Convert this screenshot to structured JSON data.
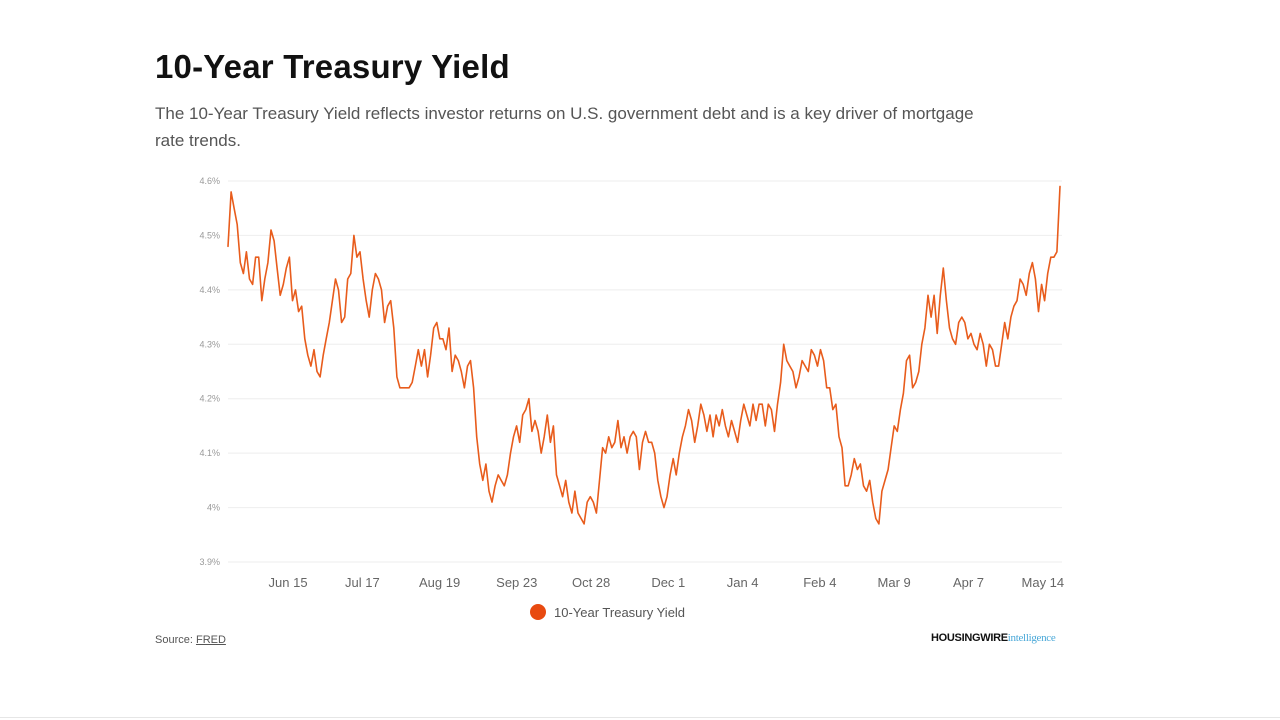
{
  "header": {
    "title": "10-Year Treasury Yield",
    "subtitle": "The 10-Year Treasury Yield reflects investor returns on U.S. government debt and is a key driver of mortgage rate trends."
  },
  "footer": {
    "source_label": "Source: ",
    "source_link": "FRED",
    "logo_part1": "HOUSINGWIRE",
    "logo_part2": "intelligence"
  },
  "colors": {
    "series": "#e85c1c",
    "legend_dot": "#e84a10",
    "grid": "#eeeeee",
    "tick_text": "#999999",
    "x_tick_text": "#666666"
  },
  "chart_data": {
    "type": "line",
    "title": "10-Year Treasury Yield",
    "xlabel": "",
    "ylabel": "",
    "ylim": [
      3.9,
      4.6
    ],
    "xlim": [
      0,
      291
    ],
    "grid": "horizontal",
    "legend_position": "bottom-center",
    "y_ticks": [
      {
        "value": 3.9,
        "label": "3.9%"
      },
      {
        "value": 4.0,
        "label": "4%"
      },
      {
        "value": 4.1,
        "label": "4.1%"
      },
      {
        "value": 4.2,
        "label": "4.2%"
      },
      {
        "value": 4.3,
        "label": "4.3%"
      },
      {
        "value": 4.4,
        "label": "4.4%"
      },
      {
        "value": 4.5,
        "label": "4.5%"
      },
      {
        "value": 4.6,
        "label": "4.6%"
      }
    ],
    "x_ticks": [
      {
        "x": 21,
        "label": "Jun 15"
      },
      {
        "x": 47,
        "label": "Jul 17"
      },
      {
        "x": 74,
        "label": "Aug 19"
      },
      {
        "x": 101,
        "label": "Sep 23"
      },
      {
        "x": 127,
        "label": "Oct 28"
      },
      {
        "x": 154,
        "label": "Dec 1"
      },
      {
        "x": 180,
        "label": "Jan 4"
      },
      {
        "x": 207,
        "label": "Feb 4"
      },
      {
        "x": 233,
        "label": "Mar 9"
      },
      {
        "x": 259,
        "label": "Apr 7"
      },
      {
        "x": 285,
        "label": "May 14"
      }
    ],
    "series": [
      {
        "name": "10-Year Treasury Yield",
        "points": [
          [
            0,
            4.48
          ],
          [
            1,
            4.58
          ],
          [
            2,
            4.55
          ],
          [
            3,
            4.52
          ],
          [
            4,
            4.45
          ],
          [
            5,
            4.43
          ],
          [
            6,
            4.47
          ],
          [
            7,
            4.42
          ],
          [
            8,
            4.41
          ],
          [
            9,
            4.46
          ],
          [
            10,
            4.46
          ],
          [
            11,
            4.38
          ],
          [
            12,
            4.42
          ],
          [
            13,
            4.45
          ],
          [
            14,
            4.51
          ],
          [
            15,
            4.49
          ],
          [
            16,
            4.44
          ],
          [
            17,
            4.39
          ],
          [
            18,
            4.41
          ],
          [
            19,
            4.44
          ],
          [
            20,
            4.46
          ],
          [
            21,
            4.38
          ],
          [
            22,
            4.4
          ],
          [
            23,
            4.36
          ],
          [
            24,
            4.37
          ],
          [
            25,
            4.31
          ],
          [
            26,
            4.28
          ],
          [
            27,
            4.26
          ],
          [
            28,
            4.29
          ],
          [
            29,
            4.25
          ],
          [
            30,
            4.24
          ],
          [
            31,
            4.28
          ],
          [
            32,
            4.31
          ],
          [
            33,
            4.34
          ],
          [
            34,
            4.38
          ],
          [
            35,
            4.42
          ],
          [
            36,
            4.4
          ],
          [
            37,
            4.34
          ],
          [
            38,
            4.35
          ],
          [
            39,
            4.42
          ],
          [
            40,
            4.43
          ],
          [
            41,
            4.5
          ],
          [
            42,
            4.46
          ],
          [
            43,
            4.47
          ],
          [
            44,
            4.42
          ],
          [
            45,
            4.38
          ],
          [
            46,
            4.35
          ],
          [
            47,
            4.4
          ],
          [
            48,
            4.43
          ],
          [
            49,
            4.42
          ],
          [
            50,
            4.4
          ],
          [
            51,
            4.34
          ],
          [
            52,
            4.37
          ],
          [
            53,
            4.38
          ],
          [
            54,
            4.33
          ],
          [
            55,
            4.24
          ],
          [
            56,
            4.22
          ],
          [
            57,
            4.22
          ],
          [
            58,
            4.22
          ],
          [
            59,
            4.22
          ],
          [
            60,
            4.23
          ],
          [
            61,
            4.26
          ],
          [
            62,
            4.29
          ],
          [
            63,
            4.26
          ],
          [
            64,
            4.29
          ],
          [
            65,
            4.24
          ],
          [
            66,
            4.28
          ],
          [
            67,
            4.33
          ],
          [
            68,
            4.34
          ],
          [
            69,
            4.31
          ],
          [
            70,
            4.31
          ],
          [
            71,
            4.29
          ],
          [
            72,
            4.33
          ],
          [
            73,
            4.25
          ],
          [
            74,
            4.28
          ],
          [
            75,
            4.27
          ],
          [
            76,
            4.25
          ],
          [
            77,
            4.22
          ],
          [
            78,
            4.26
          ],
          [
            79,
            4.27
          ],
          [
            80,
            4.22
          ],
          [
            81,
            4.13
          ],
          [
            82,
            4.08
          ],
          [
            83,
            4.05
          ],
          [
            84,
            4.08
          ],
          [
            85,
            4.03
          ],
          [
            86,
            4.01
          ],
          [
            87,
            4.04
          ],
          [
            88,
            4.06
          ],
          [
            89,
            4.05
          ],
          [
            90,
            4.04
          ],
          [
            91,
            4.06
          ],
          [
            92,
            4.1
          ],
          [
            93,
            4.13
          ],
          [
            94,
            4.15
          ],
          [
            95,
            4.12
          ],
          [
            96,
            4.17
          ],
          [
            97,
            4.18
          ],
          [
            98,
            4.2
          ],
          [
            99,
            4.14
          ],
          [
            100,
            4.16
          ],
          [
            101,
            4.14
          ],
          [
            102,
            4.1
          ],
          [
            103,
            4.13
          ],
          [
            104,
            4.17
          ],
          [
            105,
            4.12
          ],
          [
            106,
            4.15
          ],
          [
            107,
            4.06
          ],
          [
            108,
            4.04
          ],
          [
            109,
            4.02
          ],
          [
            110,
            4.05
          ],
          [
            111,
            4.01
          ],
          [
            112,
            3.99
          ],
          [
            113,
            4.03
          ],
          [
            114,
            3.99
          ],
          [
            115,
            3.98
          ],
          [
            116,
            3.97
          ],
          [
            117,
            4.01
          ],
          [
            118,
            4.02
          ],
          [
            119,
            4.01
          ],
          [
            120,
            3.99
          ],
          [
            121,
            4.05
          ],
          [
            122,
            4.11
          ],
          [
            123,
            4.1
          ],
          [
            124,
            4.13
          ],
          [
            125,
            4.11
          ],
          [
            126,
            4.12
          ],
          [
            127,
            4.16
          ],
          [
            128,
            4.11
          ],
          [
            129,
            4.13
          ],
          [
            130,
            4.1
          ],
          [
            131,
            4.13
          ],
          [
            132,
            4.14
          ],
          [
            133,
            4.13
          ],
          [
            134,
            4.07
          ],
          [
            135,
            4.12
          ],
          [
            136,
            4.14
          ],
          [
            137,
            4.12
          ],
          [
            138,
            4.12
          ],
          [
            139,
            4.1
          ],
          [
            140,
            4.05
          ],
          [
            141,
            4.02
          ],
          [
            142,
            4.0
          ],
          [
            143,
            4.02
          ],
          [
            144,
            4.06
          ],
          [
            145,
            4.09
          ],
          [
            146,
            4.06
          ],
          [
            147,
            4.1
          ],
          [
            148,
            4.13
          ],
          [
            149,
            4.15
          ],
          [
            150,
            4.18
          ],
          [
            151,
            4.16
          ],
          [
            152,
            4.12
          ],
          [
            153,
            4.15
          ],
          [
            154,
            4.19
          ],
          [
            155,
            4.17
          ],
          [
            156,
            4.14
          ],
          [
            157,
            4.17
          ],
          [
            158,
            4.13
          ],
          [
            159,
            4.17
          ],
          [
            160,
            4.15
          ],
          [
            161,
            4.18
          ],
          [
            162,
            4.15
          ],
          [
            163,
            4.13
          ],
          [
            164,
            4.16
          ],
          [
            165,
            4.14
          ],
          [
            166,
            4.12
          ],
          [
            167,
            4.16
          ],
          [
            168,
            4.19
          ],
          [
            169,
            4.17
          ],
          [
            170,
            4.15
          ],
          [
            171,
            4.19
          ],
          [
            172,
            4.16
          ],
          [
            173,
            4.19
          ],
          [
            174,
            4.19
          ],
          [
            175,
            4.15
          ],
          [
            176,
            4.19
          ],
          [
            177,
            4.18
          ],
          [
            178,
            4.14
          ],
          [
            179,
            4.19
          ],
          [
            180,
            4.23
          ],
          [
            181,
            4.3
          ],
          [
            182,
            4.27
          ],
          [
            183,
            4.26
          ],
          [
            184,
            4.25
          ],
          [
            185,
            4.22
          ],
          [
            186,
            4.24
          ],
          [
            187,
            4.27
          ],
          [
            188,
            4.26
          ],
          [
            189,
            4.25
          ],
          [
            190,
            4.29
          ],
          [
            191,
            4.28
          ],
          [
            192,
            4.26
          ],
          [
            193,
            4.29
          ],
          [
            194,
            4.27
          ],
          [
            195,
            4.22
          ],
          [
            196,
            4.22
          ],
          [
            197,
            4.18
          ],
          [
            198,
            4.19
          ],
          [
            199,
            4.13
          ],
          [
            200,
            4.11
          ],
          [
            201,
            4.04
          ],
          [
            202,
            4.04
          ],
          [
            203,
            4.06
          ],
          [
            204,
            4.09
          ],
          [
            205,
            4.07
          ],
          [
            206,
            4.08
          ],
          [
            207,
            4.04
          ],
          [
            208,
            4.03
          ],
          [
            209,
            4.05
          ],
          [
            210,
            4.01
          ],
          [
            211,
            3.98
          ],
          [
            212,
            3.97
          ],
          [
            213,
            4.03
          ],
          [
            214,
            4.05
          ],
          [
            215,
            4.07
          ],
          [
            216,
            4.11
          ],
          [
            217,
            4.15
          ],
          [
            218,
            4.14
          ],
          [
            219,
            4.18
          ],
          [
            220,
            4.21
          ],
          [
            221,
            4.27
          ],
          [
            222,
            4.28
          ],
          [
            223,
            4.22
          ],
          [
            224,
            4.23
          ],
          [
            225,
            4.25
          ],
          [
            226,
            4.3
          ],
          [
            227,
            4.33
          ],
          [
            228,
            4.39
          ],
          [
            229,
            4.35
          ],
          [
            230,
            4.39
          ],
          [
            231,
            4.32
          ],
          [
            232,
            4.39
          ],
          [
            233,
            4.44
          ],
          [
            234,
            4.38
          ],
          [
            235,
            4.33
          ],
          [
            236,
            4.31
          ],
          [
            237,
            4.3
          ],
          [
            238,
            4.34
          ],
          [
            239,
            4.35
          ],
          [
            240,
            4.34
          ],
          [
            241,
            4.31
          ],
          [
            242,
            4.32
          ],
          [
            243,
            4.3
          ],
          [
            244,
            4.29
          ],
          [
            245,
            4.32
          ],
          [
            246,
            4.3
          ],
          [
            247,
            4.26
          ],
          [
            248,
            4.3
          ],
          [
            249,
            4.29
          ],
          [
            250,
            4.26
          ],
          [
            251,
            4.26
          ],
          [
            252,
            4.3
          ],
          [
            253,
            4.34
          ],
          [
            254,
            4.31
          ],
          [
            255,
            4.35
          ],
          [
            256,
            4.37
          ],
          [
            257,
            4.38
          ],
          [
            258,
            4.42
          ],
          [
            259,
            4.41
          ],
          [
            260,
            4.39
          ],
          [
            261,
            4.43
          ],
          [
            262,
            4.45
          ],
          [
            263,
            4.42
          ],
          [
            264,
            4.36
          ],
          [
            265,
            4.41
          ],
          [
            266,
            4.38
          ],
          [
            267,
            4.43
          ],
          [
            268,
            4.46
          ],
          [
            269,
            4.46
          ],
          [
            270,
            4.47
          ],
          [
            271,
            4.59
          ]
        ]
      }
    ]
  }
}
